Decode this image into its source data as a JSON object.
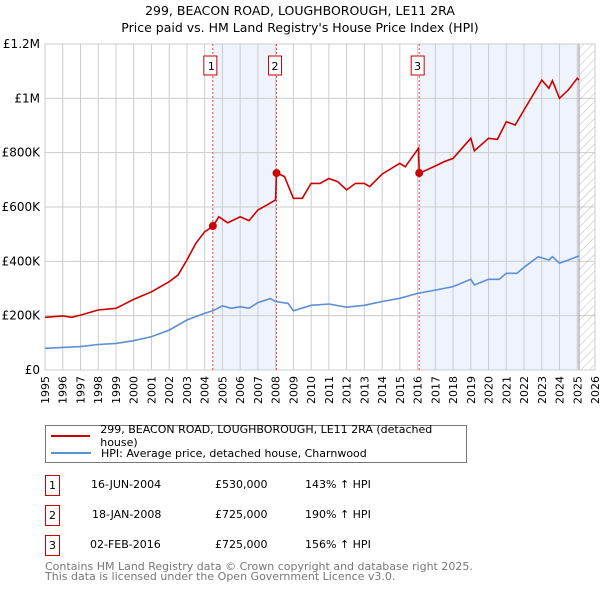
{
  "title": "299, BEACON ROAD, LOUGHBOROUGH, LE11 2RA",
  "subtitle": "Price paid vs. HM Land Registry's House Price Index (HPI)",
  "colors": {
    "property": "#cc0000",
    "hpi": "#5b8fd6",
    "shade": "#eef3fc"
  },
  "chart_data": {
    "type": "line",
    "title": "299, BEACON ROAD, LOUGHBOROUGH, LE11 2RA",
    "xlim": [
      1995,
      2026
    ],
    "ylim": [
      0,
      1200000
    ],
    "x_ticks": [
      "1995",
      "1996",
      "1997",
      "1998",
      "1999",
      "2000",
      "2001",
      "2002",
      "2003",
      "2004",
      "2005",
      "2006",
      "2007",
      "2008",
      "2009",
      "2010",
      "2011",
      "2012",
      "2013",
      "2014",
      "2015",
      "2016",
      "2017",
      "2018",
      "2019",
      "2020",
      "2021",
      "2022",
      "2023",
      "2024",
      "2025",
      "2026"
    ],
    "y_ticks": [
      {
        "v": 0,
        "label": "£0"
      },
      {
        "v": 200000,
        "label": "£200K"
      },
      {
        "v": 400000,
        "label": "£400K"
      },
      {
        "v": 600000,
        "label": "£600K"
      },
      {
        "v": 800000,
        "label": "£800K"
      },
      {
        "v": 1000000,
        "label": "£1M"
      },
      {
        "v": 1200000,
        "label": "£1.2M"
      }
    ],
    "grid": true,
    "forecast_from": 2025.1,
    "series": [
      {
        "name": "299, BEACON ROAD, LOUGHBOROUGH, LE11 2RA (detached house)",
        "x": [
          1995,
          1996,
          1996.5,
          1997,
          1998,
          1999,
          2000,
          2001,
          2002,
          2002.5,
          2003,
          2003.5,
          2004,
          2004.46,
          2004.8,
          2005.3,
          2006,
          2006.5,
          2007,
          2007.5,
          2008,
          2008.05,
          2008.5,
          2009,
          2009.5,
          2010,
          2010.5,
          2011,
          2011.5,
          2012,
          2012.5,
          2013,
          2013.3,
          2014,
          2015,
          2015.3,
          2016.05,
          2016.09,
          2017,
          2017.5,
          2018,
          2018.5,
          2019,
          2019.2,
          2020,
          2020.5,
          2021,
          2021.5,
          2022,
          2022.5,
          2023,
          2023.4,
          2023.6,
          2024,
          2024.5,
          2025,
          2025.1
        ],
        "y": [
          194000,
          199000,
          194000,
          202000,
          221000,
          227000,
          260000,
          288000,
          325000,
          350000,
          405000,
          466000,
          509000,
          528000,
          564000,
          542000,
          564000,
          550000,
          589000,
          607000,
          626000,
          726000,
          712000,
          632000,
          632000,
          687000,
          687000,
          705000,
          693000,
          663000,
          687000,
          687000,
          675000,
          721000,
          761000,
          748000,
          816000,
          724000,
          751000,
          767000,
          779000,
          816000,
          853000,
          807000,
          853000,
          849000,
          914000,
          902000,
          957000,
          1012000,
          1067000,
          1037000,
          1065000,
          1000000,
          1031000,
          1074000,
          1067000
        ]
      },
      {
        "name": "HPI: Average price, detached house, Charnwood",
        "x": [
          1995,
          1997,
          1998,
          1999,
          2000,
          2001,
          2002,
          2003,
          2004,
          2004.46,
          2005,
          2005.5,
          2006,
          2006.5,
          2007,
          2007.7,
          2008,
          2008.7,
          2009,
          2010,
          2011,
          2012,
          2013,
          2014,
          2015,
          2016,
          2017,
          2018,
          2019,
          2019.2,
          2020,
          2020.6,
          2021,
          2021.6,
          2022,
          2022.8,
          2023.4,
          2023.6,
          2024,
          2024.5,
          2025.1
        ],
        "y": [
          80000,
          86000,
          94000,
          98000,
          108000,
          123000,
          147000,
          184000,
          209000,
          218000,
          236000,
          227000,
          233000,
          227000,
          248000,
          263000,
          252000,
          245000,
          218000,
          238000,
          243000,
          231000,
          238000,
          252000,
          264000,
          282000,
          294000,
          307000,
          334000,
          313000,
          334000,
          334000,
          356000,
          356000,
          378000,
          417000,
          405000,
          417000,
          393000,
          405000,
          420000
        ]
      }
    ],
    "sales": [
      {
        "label": "1",
        "x": 2004.46,
        "y": 530000
      },
      {
        "label": "2",
        "x": 2008.05,
        "y": 725000
      },
      {
        "label": "3",
        "x": 2016.09,
        "y": 725000
      }
    ]
  },
  "legend": {
    "property": "299, BEACON ROAD, LOUGHBOROUGH, LE11 2RA (detached house)",
    "hpi": "HPI: Average price, detached house, Charnwood"
  },
  "transactions": [
    {
      "num": "1",
      "date": "16-JUN-2004",
      "price": "£530,000",
      "hpi": "143% ↑ HPI"
    },
    {
      "num": "2",
      "date": "18-JAN-2008",
      "price": "£725,000",
      "hpi": "190% ↑ HPI"
    },
    {
      "num": "3",
      "date": "02-FEB-2016",
      "price": "£725,000",
      "hpi": "156% ↑ HPI"
    }
  ],
  "footer": {
    "line1": "Contains HM Land Registry data © Crown copyright and database right 2025.",
    "line2": "This data is licensed under the Open Government Licence v3.0."
  }
}
